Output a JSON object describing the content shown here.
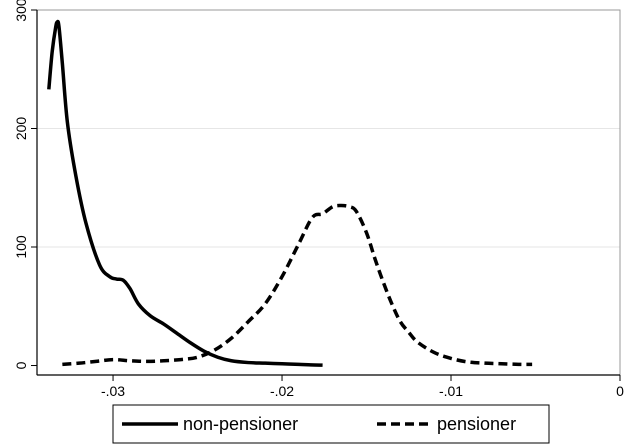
{
  "chart_data": {
    "type": "line",
    "title": "",
    "xlabel": "",
    "ylabel": "",
    "xlim": [
      -0.0345,
      0
    ],
    "ylim": [
      -8,
      300
    ],
    "x_ticks": [
      {
        "value": -0.03,
        "label": "-.03"
      },
      {
        "value": -0.02,
        "label": "-.02"
      },
      {
        "value": -0.01,
        "label": "-.01"
      },
      {
        "value": 0,
        "label": "0"
      }
    ],
    "y_ticks": [
      {
        "value": 0,
        "label": "0"
      },
      {
        "value": 100,
        "label": "100"
      },
      {
        "value": 200,
        "label": "200"
      },
      {
        "value": 300,
        "label": "300"
      }
    ],
    "grid": "horizontal",
    "legend_position": "bottom",
    "series": [
      {
        "name": "non-pensioner",
        "style": "solid",
        "color": "#000000",
        "points": [
          [
            -0.0338,
            233
          ],
          [
            -0.0336,
            265
          ],
          [
            -0.0334,
            285
          ],
          [
            -0.0333,
            290
          ],
          [
            -0.0332,
            286
          ],
          [
            -0.033,
            255
          ],
          [
            -0.0327,
            205
          ],
          [
            -0.0322,
            160
          ],
          [
            -0.0316,
            120
          ],
          [
            -0.0308,
            85
          ],
          [
            -0.0302,
            75
          ],
          [
            -0.0298,
            73
          ],
          [
            -0.0294,
            72
          ],
          [
            -0.029,
            65
          ],
          [
            -0.0285,
            52
          ],
          [
            -0.0278,
            42
          ],
          [
            -0.027,
            35
          ],
          [
            -0.0262,
            27
          ],
          [
            -0.0254,
            19
          ],
          [
            -0.0246,
            12
          ],
          [
            -0.0238,
            7
          ],
          [
            -0.023,
            4
          ],
          [
            -0.022,
            2.5
          ],
          [
            -0.021,
            2
          ],
          [
            -0.02,
            1.5
          ],
          [
            -0.019,
            1
          ],
          [
            -0.0183,
            0.5
          ],
          [
            -0.0176,
            0.3
          ]
        ]
      },
      {
        "name": "pensioner",
        "style": "dashed",
        "color": "#000000",
        "points": [
          [
            -0.033,
            1
          ],
          [
            -0.032,
            2
          ],
          [
            -0.031,
            3.5
          ],
          [
            -0.03,
            5
          ],
          [
            -0.029,
            4
          ],
          [
            -0.028,
            3.5
          ],
          [
            -0.027,
            4
          ],
          [
            -0.026,
            5
          ],
          [
            -0.025,
            7
          ],
          [
            -0.024,
            13
          ],
          [
            -0.023,
            23
          ],
          [
            -0.022,
            37
          ],
          [
            -0.021,
            52
          ],
          [
            -0.02,
            75
          ],
          [
            -0.019,
            103
          ],
          [
            -0.0182,
            125
          ],
          [
            -0.0176,
            128
          ],
          [
            -0.017,
            134
          ],
          [
            -0.0165,
            135
          ],
          [
            -0.016,
            134
          ],
          [
            -0.0156,
            130
          ],
          [
            -0.015,
            112
          ],
          [
            -0.0145,
            90
          ],
          [
            -0.014,
            70
          ],
          [
            -0.0135,
            52
          ],
          [
            -0.013,
            37
          ],
          [
            -0.0125,
            28
          ],
          [
            -0.012,
            20
          ],
          [
            -0.011,
            11
          ],
          [
            -0.01,
            6
          ],
          [
            -0.009,
            3
          ],
          [
            -0.008,
            2
          ],
          [
            -0.007,
            1.5
          ],
          [
            -0.006,
            1
          ],
          [
            -0.0052,
            1
          ]
        ]
      }
    ]
  }
}
